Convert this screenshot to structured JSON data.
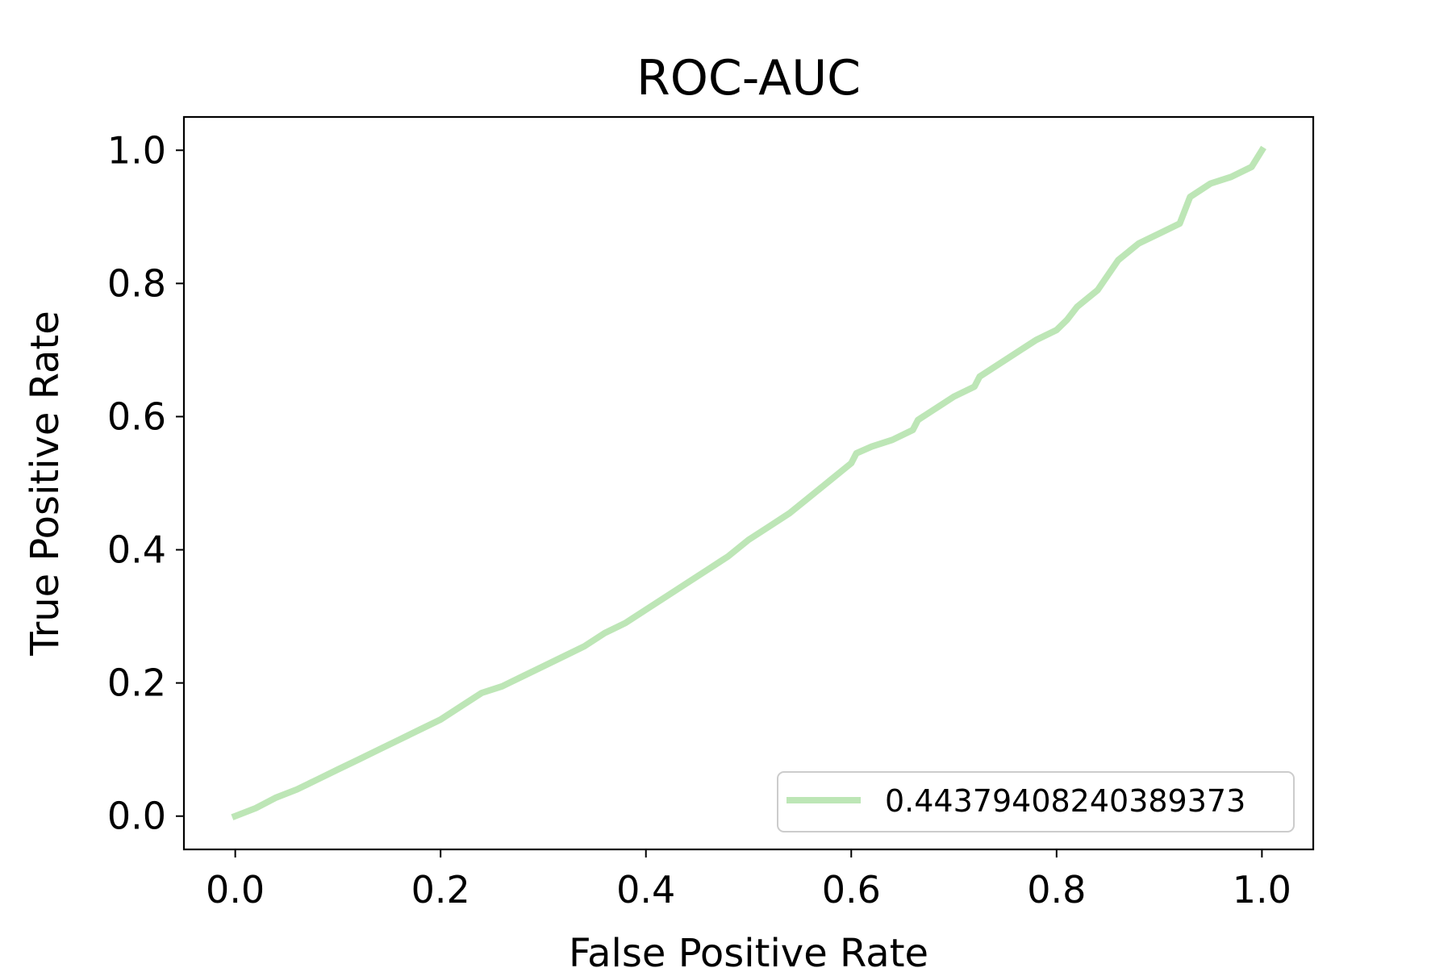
{
  "chart_data": {
    "type": "line",
    "title": "ROC-AUC",
    "xlabel": "False Positive Rate",
    "ylabel": "True Positive Rate",
    "xlim": [
      -0.05,
      1.05
    ],
    "ylim": [
      -0.05,
      1.05
    ],
    "xticks": [
      "0.0",
      "0.2",
      "0.4",
      "0.6",
      "0.8",
      "1.0"
    ],
    "yticks": [
      "0.0",
      "0.2",
      "0.4",
      "0.6",
      "0.8",
      "1.0"
    ],
    "grid": false,
    "legend_position": "bottom-right",
    "series": [
      {
        "name": "0.44379408240389373",
        "color": "#bde6b6",
        "x": [
          0.0,
          0.02,
          0.04,
          0.06,
          0.08,
          0.1,
          0.12,
          0.14,
          0.16,
          0.18,
          0.2,
          0.22,
          0.24,
          0.26,
          0.28,
          0.3,
          0.32,
          0.34,
          0.36,
          0.38,
          0.4,
          0.42,
          0.44,
          0.46,
          0.48,
          0.5,
          0.52,
          0.54,
          0.56,
          0.58,
          0.6,
          0.605,
          0.62,
          0.64,
          0.66,
          0.665,
          0.68,
          0.7,
          0.72,
          0.725,
          0.74,
          0.76,
          0.78,
          0.8,
          0.81,
          0.82,
          0.84,
          0.86,
          0.88,
          0.9,
          0.92,
          0.93,
          0.95,
          0.97,
          0.99,
          1.0
        ],
        "y": [
          0.0,
          0.012,
          0.028,
          0.04,
          0.055,
          0.07,
          0.085,
          0.1,
          0.115,
          0.13,
          0.145,
          0.165,
          0.185,
          0.195,
          0.21,
          0.225,
          0.24,
          0.255,
          0.275,
          0.29,
          0.31,
          0.33,
          0.35,
          0.37,
          0.39,
          0.415,
          0.435,
          0.455,
          0.48,
          0.505,
          0.53,
          0.545,
          0.555,
          0.565,
          0.58,
          0.595,
          0.61,
          0.63,
          0.645,
          0.66,
          0.675,
          0.695,
          0.715,
          0.73,
          0.745,
          0.765,
          0.79,
          0.835,
          0.86,
          0.875,
          0.89,
          0.93,
          0.95,
          0.96,
          0.975,
          1.0
        ]
      }
    ]
  }
}
